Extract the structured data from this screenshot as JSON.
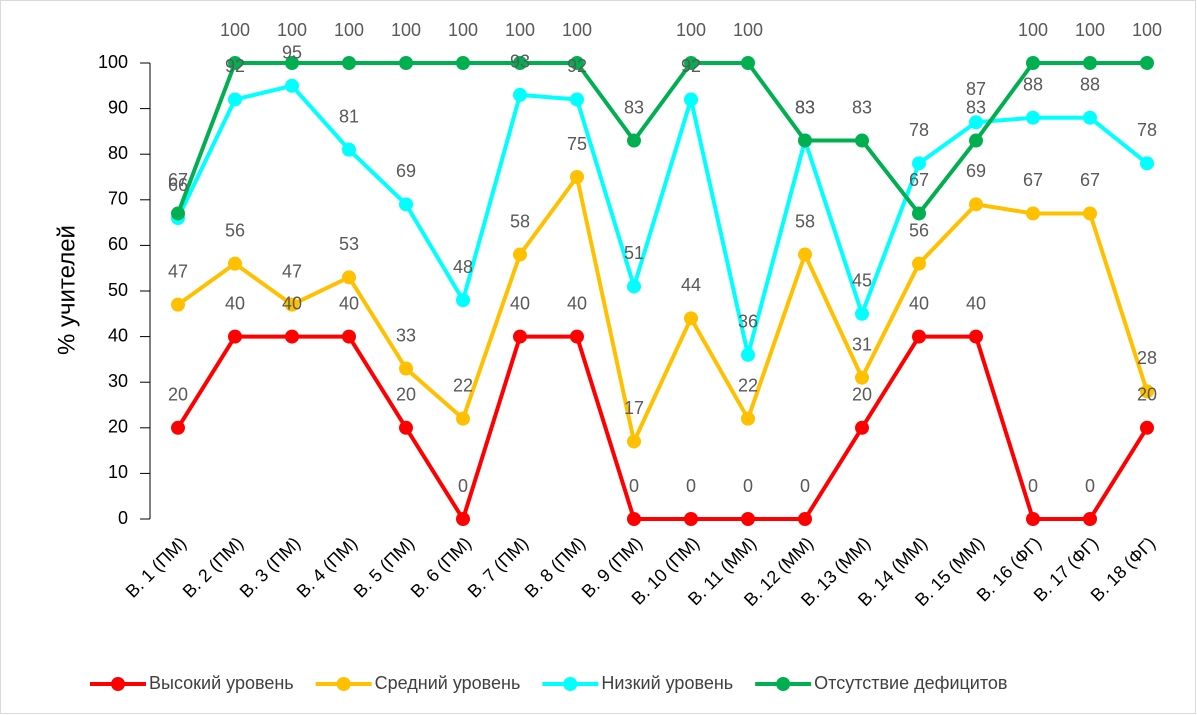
{
  "chart_data": {
    "type": "line",
    "y_label": "% учителей",
    "categories": [
      "В. 1 (ПМ)",
      "В. 2 (ПМ)",
      "В. 3 (ПМ)",
      "В. 4 (ПМ)",
      "В. 5 (ПМ)",
      "В. 6 (ПМ)",
      "В. 7 (ПМ)",
      "В. 8 (ПМ)",
      "В. 9 (ПМ)",
      "В. 10 (ПМ)",
      "В. 11 (ММ)",
      "В. 12 (ММ)",
      "В. 13 (ММ)",
      "В. 14 (ММ)",
      "В. 15 (ММ)",
      "В. 16 (ФГ)",
      "В. 17 (ФГ)",
      "В. 18 (ФГ)"
    ],
    "series": [
      {
        "name": "Высокий уровень",
        "color": "#ff0000",
        "values": [
          20,
          40,
          40,
          40,
          20,
          0,
          40,
          40,
          0,
          0,
          0,
          0,
          20,
          40,
          40,
          0,
          0,
          20
        ]
      },
      {
        "name": "Средний уровень",
        "color": "#ffc000",
        "values": [
          47,
          56,
          47,
          53,
          33,
          22,
          58,
          75,
          17,
          44,
          22,
          58,
          31,
          56,
          69,
          67,
          67,
          28
        ]
      },
      {
        "name": "Низкий уровень",
        "color": "#00ffff",
        "values": [
          66,
          92,
          95,
          81,
          69,
          48,
          93,
          92,
          51,
          92,
          36,
          83,
          45,
          78,
          87,
          88,
          88,
          78
        ]
      },
      {
        "name": "Отсутствие дефицитов",
        "color": "#00b050",
        "values": [
          67,
          100,
          100,
          100,
          100,
          100,
          100,
          100,
          83,
          100,
          100,
          83,
          83,
          67,
          83,
          100,
          100,
          100
        ]
      }
    ],
    "ylim": [
      0,
      100
    ],
    "yticks": [
      0,
      10,
      20,
      30,
      40,
      50,
      60,
      70,
      80,
      90,
      100
    ],
    "legend": "bottom"
  }
}
